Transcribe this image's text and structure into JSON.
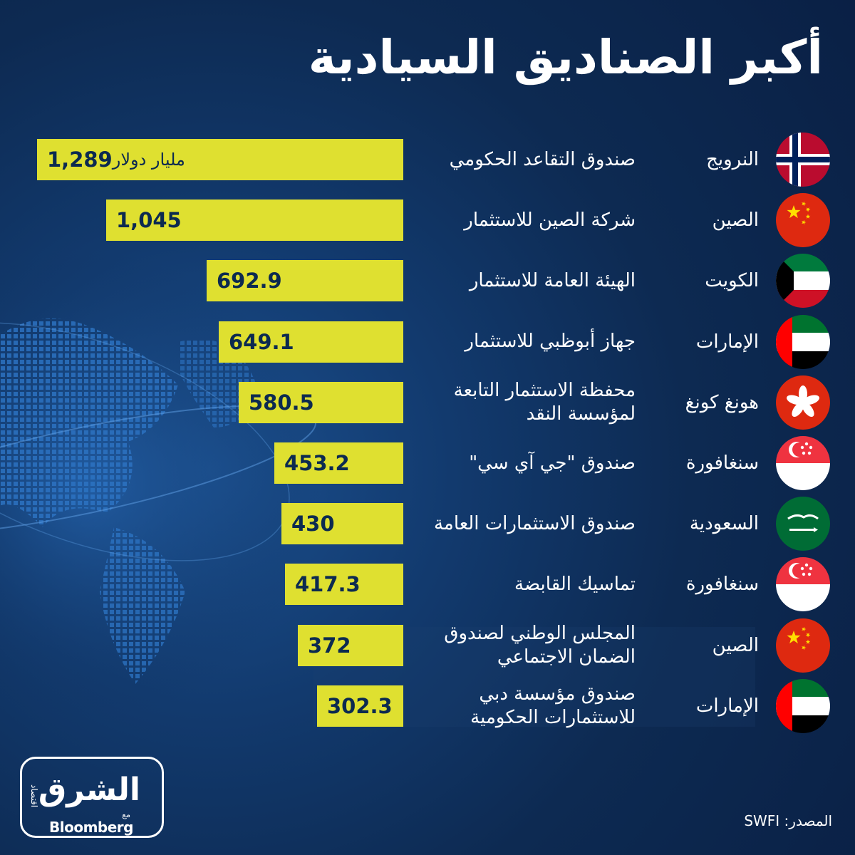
{
  "title": "أكبر الصناديق السيادية",
  "source_label": "المصدر:",
  "source_value": "SWFI",
  "logo": {
    "main": "الشرق",
    "sub": "اقتصاد",
    "with": "مع",
    "brand": "Bloomberg"
  },
  "colors": {
    "bar": "#dfe030",
    "bar_text": "#0c2a50",
    "background": "#0d2a52"
  },
  "chart_data": {
    "type": "bar",
    "orientation": "horizontal",
    "unit_label": "مليار دولار",
    "categories": [
      "صندوق التقاعد الحكومي",
      "شركة الصين للاستثمار",
      "الهيئة العامة للاستثمار",
      "جهاز أبوظبي للاستثمار",
      "محفظة الاستثمار التابعة لمؤسسة النقد",
      "صندوق \"جي آي سي\"",
      "صندوق الاستثمارات العامة",
      "تماسيك القابضة",
      "المجلس الوطني لصندوق الضمان الاجتماعي",
      "صندوق مؤسسة دبي للاستثمارات الحكومية"
    ],
    "countries": [
      "النرويج",
      "الصين",
      "الكويت",
      "الإمارات",
      "هونغ كونغ",
      "سنغافورة",
      "السعودية",
      "سنغافورة",
      "الصين",
      "الإمارات"
    ],
    "flags": [
      "norway-flag-icon",
      "china-flag-icon",
      "kuwait-flag-icon",
      "uae-flag-icon",
      "hong-kong-flag-icon",
      "singapore-flag-icon",
      "saudi-flag-icon",
      "singapore-flag-icon",
      "china-flag-icon",
      "uae-flag-icon"
    ],
    "values": [
      1289,
      1045,
      692.9,
      649.1,
      580.5,
      453.2,
      430,
      417.3,
      372,
      302.3
    ],
    "value_labels": [
      "1,289",
      "1,045",
      "692.9",
      "649.1",
      "580.5",
      "453.2",
      "430",
      "417.3",
      "372",
      "302.3"
    ]
  }
}
